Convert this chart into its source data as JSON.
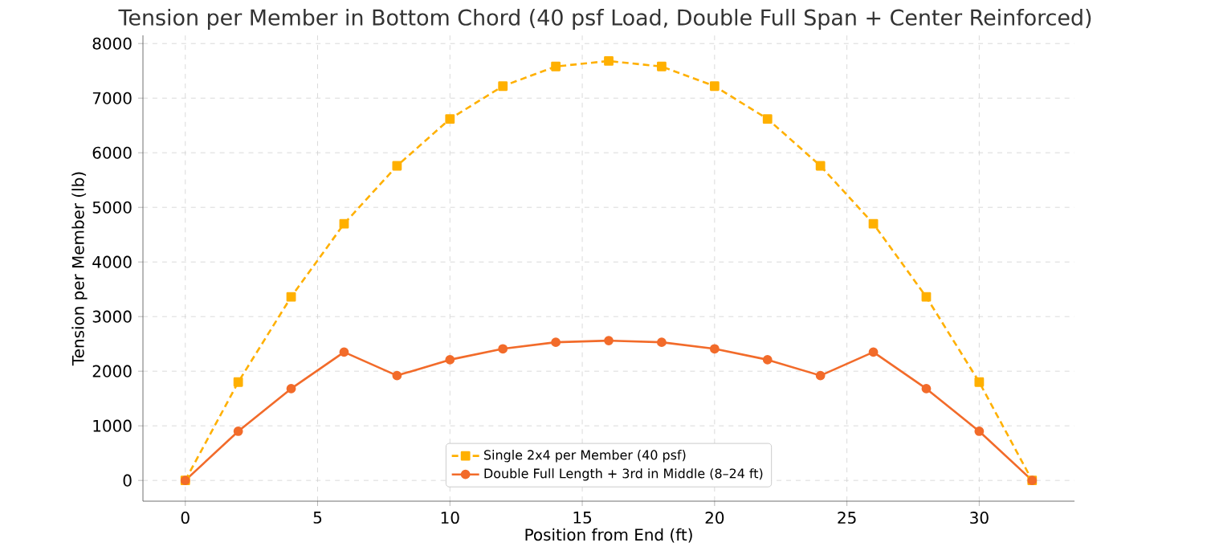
{
  "chart_data": {
    "type": "line",
    "title": "Tension per Member in Bottom Chord (40 psf Load, Double Full Span + Center Reinforced)",
    "xlabel": "Position from End (ft)",
    "ylabel": "Tension per Member (lb)",
    "x": [
      0,
      2,
      4,
      6,
      8,
      10,
      12,
      14,
      16,
      18,
      20,
      22,
      24,
      26,
      28,
      30,
      32
    ],
    "series": [
      {
        "name": "Single 2x4 per Member (40 psf)",
        "color": "#ffb000",
        "line_style": "dashed",
        "marker": "square",
        "values": [
          0,
          1800,
          3360,
          4700,
          5760,
          6620,
          7220,
          7580,
          7680,
          7580,
          7220,
          6620,
          5760,
          4700,
          3360,
          1800,
          0
        ]
      },
      {
        "name": "Double Full Length + 3rd in Middle (8–24 ft)",
        "color": "#f26b2a",
        "line_style": "solid",
        "marker": "circle",
        "values": [
          0,
          900,
          1680,
          2350,
          1920,
          2210,
          2410,
          2530,
          2560,
          2530,
          2410,
          2210,
          1920,
          2350,
          1680,
          900,
          0
        ]
      }
    ],
    "xlim": [
      -1.6,
      33.6
    ],
    "xticks": [
      0,
      5,
      10,
      15,
      20,
      25,
      30
    ],
    "ylim": [
      -380,
      8150
    ],
    "yticks": [
      0,
      1000,
      2000,
      3000,
      4000,
      5000,
      6000,
      7000,
      8000
    ],
    "grid": true,
    "legend": "bottom"
  }
}
